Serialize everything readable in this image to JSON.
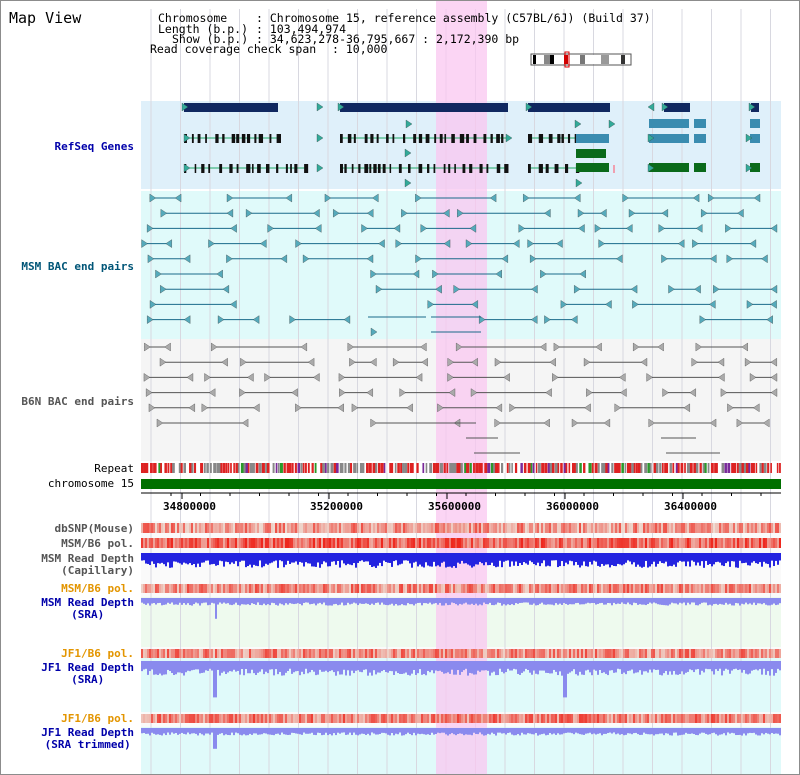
{
  "panel_title": "Map View",
  "info": {
    "chromosome_label": "Chromosome",
    "chromosome_value": ": Chromosome 15, reference assembly (C57BL/6J) (Build 37)",
    "length_label": "Length (b.p.)",
    "length_value": ": 103,494,974",
    "show_label": "Show (b.p.)",
    "show_value": ": 34,623,278-36,795,667 : 2,172,390 bp",
    "coverage_label": "Read coverage check span",
    "coverage_value": ": 10,000"
  },
  "tracks": {
    "refseq": "RefSeq Genes",
    "msm_bac": "MSM BAC end pairs",
    "b6n_bac": "B6N BAC end pairs",
    "repeat": "Repeat",
    "chromosome": "chromosome 15",
    "dbsnp": "dbSNP(Mouse)",
    "msm_b6_pol_1": "MSM/B6 pol.",
    "msm_read_depth_cap_1": "MSM Read Depth",
    "msm_read_depth_cap_2": "(Capillary)",
    "msm_b6_pol_2": "MSM/B6 pol.",
    "msm_read_depth_sra_1": "MSM Read Depth",
    "msm_read_depth_sra_2": "(SRA)",
    "jf1_b6_pol_1": "JF1/B6 pol.",
    "jf1_read_depth_sra_1": "JF1 Read Depth",
    "jf1_read_depth_sra_2": "(SRA)",
    "jf1_b6_pol_2": "JF1/B6 pol.",
    "jf1_read_depth_trim_1": "JF1 Read Depth",
    "jf1_read_depth_trim_2": "(SRA trimmed)"
  },
  "axis_ticks": [
    "34800000",
    "35200000",
    "35600000",
    "36000000",
    "36400000"
  ],
  "colors": {
    "refseq_bg": "#dff0fa",
    "msm_bac_bg": "#e0fafa",
    "b6n_bg": "#f5f5f5",
    "highlight": "#f9c7f0",
    "chromosome_bar": "#007000",
    "pol_red": "#ee2222",
    "depth_blue": "#2222dd",
    "depth_light": "#8888ee"
  }
}
